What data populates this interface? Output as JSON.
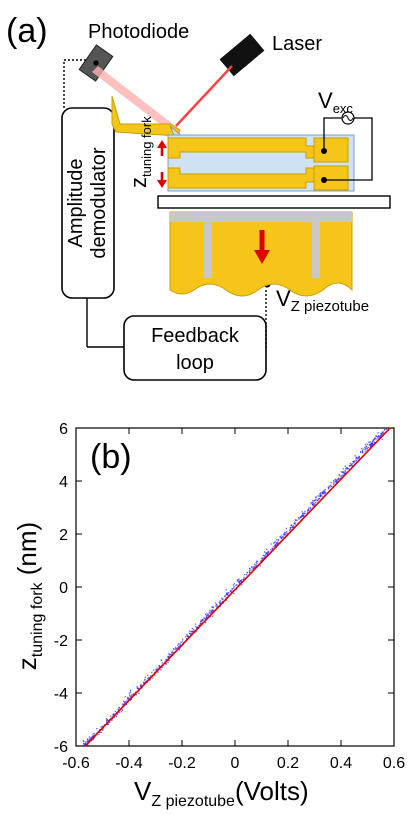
{
  "panel_a": {
    "label": "(a)",
    "photodiode_label": "Photodiode",
    "laser_label": "Laser",
    "vexc_main": "V",
    "vexc_sub": "exc",
    "z_main": "z",
    "z_sub": "tuning fork",
    "vz_main": "V",
    "vz_sub": "Z piezotube",
    "amp_demod_line1": "Amplitude",
    "amp_demod_line2": "demodulator",
    "feedback_line1": "Feedback",
    "feedback_line2": "loop",
    "colors": {
      "gold": "#f5c518",
      "gold_dark": "#c9a000",
      "light_blue": "#cfe2f3",
      "gray": "#c8c8c8",
      "red_arrow": "#e00000",
      "laser_beam": "#ff4040"
    },
    "icons": [
      "photodiode-icon",
      "laser-icon",
      "ac-source-icon",
      "down-arrow-icon",
      "up-arrow-icon"
    ]
  },
  "chart_data": {
    "type": "scatter",
    "panel_label": "(b)",
    "xlabel_main": "V",
    "xlabel_sub": "Z piezotube",
    "xlabel_unit": "(Volts)",
    "ylabel_main": "z",
    "ylabel_sub": "tuning fork",
    "ylabel_unit": " (nm)",
    "xlim": [
      -0.6,
      0.6
    ],
    "ylim": [
      -6,
      6
    ],
    "xticks": [
      "-0.6",
      "-0.4",
      "-0.2",
      "0",
      "0.2",
      "0.4",
      "0.6"
    ],
    "yticks": [
      "-6",
      "-4",
      "-2",
      "0",
      "2",
      "4",
      "6"
    ],
    "series": [
      {
        "kind": "scatter",
        "color": "#3030ff",
        "x": [
          -0.57,
          -0.5,
          -0.4,
          -0.3,
          -0.2,
          -0.1,
          0.0,
          0.1,
          0.2,
          0.3,
          0.4,
          0.5,
          0.58
        ],
        "y": [
          -6.0,
          -5.3,
          -4.2,
          -3.2,
          -2.1,
          -1.05,
          0.0,
          1.05,
          2.1,
          3.2,
          4.2,
          5.3,
          6.0
        ]
      },
      {
        "kind": "fit-line",
        "color": "#e00000",
        "x": [
          -0.565,
          0.585
        ],
        "y": [
          -6.0,
          6.0
        ]
      }
    ],
    "grid": false,
    "legend": "none"
  }
}
